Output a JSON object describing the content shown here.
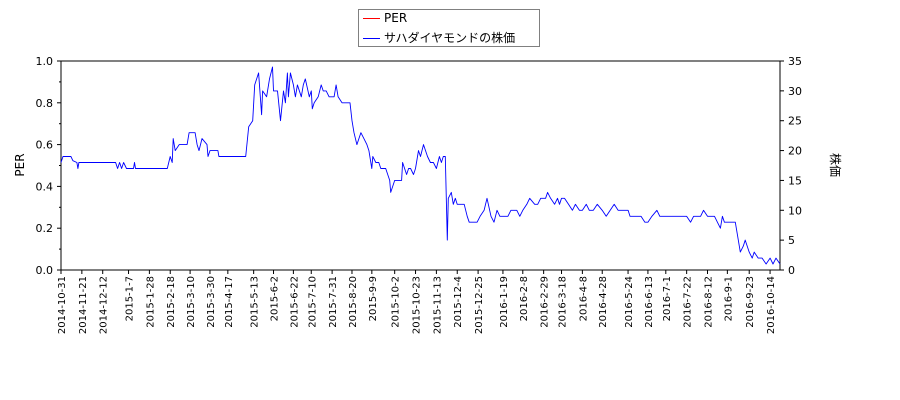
{
  "chart_data": {
    "type": "line",
    "legend": [
      {
        "name": "PER",
        "color": "#ff0000"
      },
      {
        "name": "サハダイヤモンドの株価",
        "color": "#0000ff"
      }
    ],
    "legend_position": "top-center",
    "ylabel_left": "PER",
    "ylabel_right": "株価",
    "ylim_left": [
      0,
      1.0
    ],
    "yticks_left": [
      "0.0",
      "0.2",
      "0.4",
      "0.6",
      "0.8",
      "1.0"
    ],
    "ylim_right": [
      0,
      35
    ],
    "yticks_right": [
      "0",
      "5",
      "10",
      "15",
      "20",
      "25",
      "30",
      "35"
    ],
    "xlim": [
      "2014-10-31",
      "2016-10-24"
    ],
    "xticks": [
      "2014-10-31",
      "2014-11-21",
      "2014-12-12",
      "2015-1-7",
      "2015-1-28",
      "2015-2-18",
      "2015-3-10",
      "2015-3-30",
      "2015-4-17",
      "2015-5-13",
      "2015-6-2",
      "2015-6-22",
      "2015-7-10",
      "2015-7-31",
      "2015-8-20",
      "2015-9-9",
      "2015-10-2",
      "2015-10-23",
      "2015-11-13",
      "2015-12-4",
      "2015-12-25",
      "2016-1-19",
      "2016-2-8",
      "2016-2-29",
      "2016-3-18",
      "2016-4-8",
      "2016-4-28",
      "2016-5-24",
      "2016-6-13",
      "2016-7-1",
      "2016-7-22",
      "2016-8-12",
      "2016-9-1",
      "2016-9-23",
      "2016-10-14"
    ],
    "grid": false,
    "series": [
      {
        "name": "PER",
        "axis": "left",
        "color": "#ff0000",
        "points": []
      },
      {
        "name": "サハダイヤモンドの株価",
        "axis": "right",
        "color": "#0000ff",
        "points": [
          [
            "2014-10-31",
            18.0
          ],
          [
            "2014-11-02",
            19.0
          ],
          [
            "2014-11-10",
            19.0
          ],
          [
            "2014-11-12",
            18.3
          ],
          [
            "2014-11-16",
            18.0
          ],
          [
            "2014-11-17",
            17.0
          ],
          [
            "2014-11-18",
            18.0
          ],
          [
            "2014-12-01",
            18.0
          ],
          [
            "2014-12-20",
            18.0
          ],
          [
            "2014-12-25",
            18.0
          ],
          [
            "2014-12-27",
            17.0
          ],
          [
            "2014-12-29",
            18.0
          ],
          [
            "2014-12-31",
            17.0
          ],
          [
            "2015-01-02",
            18.0
          ],
          [
            "2015-01-05",
            17.0
          ],
          [
            "2015-01-07",
            17.0
          ],
          [
            "2015-01-12",
            17.0
          ],
          [
            "2015-01-13",
            18.0
          ],
          [
            "2015-01-14",
            17.0
          ],
          [
            "2015-01-20",
            17.0
          ],
          [
            "2015-02-15",
            17.0
          ],
          [
            "2015-02-18",
            19.0
          ],
          [
            "2015-02-20",
            18.0
          ],
          [
            "2015-02-21",
            22.0
          ],
          [
            "2015-02-23",
            20.0
          ],
          [
            "2015-02-27",
            21.0
          ],
          [
            "2015-03-07",
            21.0
          ],
          [
            "2015-03-09",
            23.0
          ],
          [
            "2015-03-15",
            23.0
          ],
          [
            "2015-03-17",
            21.0
          ],
          [
            "2015-03-19",
            20.0
          ],
          [
            "2015-03-22",
            22.0
          ],
          [
            "2015-03-27",
            21.0
          ],
          [
            "2015-03-28",
            19.0
          ],
          [
            "2015-03-30",
            20.0
          ],
          [
            "2015-04-07",
            20.0
          ],
          [
            "2015-04-08",
            19.0
          ],
          [
            "2015-04-30",
            19.0
          ],
          [
            "2015-05-01",
            19.0
          ],
          [
            "2015-05-05",
            19.0
          ],
          [
            "2015-05-08",
            24.0
          ],
          [
            "2015-05-12",
            25.0
          ],
          [
            "2015-05-14",
            31.0
          ],
          [
            "2015-05-18",
            33.0
          ],
          [
            "2015-05-21",
            26.0
          ],
          [
            "2015-05-22",
            30.0
          ],
          [
            "2015-05-26",
            29.0
          ],
          [
            "2015-05-29",
            32.0
          ],
          [
            "2015-06-01",
            34.0
          ],
          [
            "2015-06-02",
            30.0
          ],
          [
            "2015-06-06",
            30.0
          ],
          [
            "2015-06-09",
            25.0
          ],
          [
            "2015-06-12",
            30.0
          ],
          [
            "2015-06-14",
            28.0
          ],
          [
            "2015-06-16",
            33.0
          ],
          [
            "2015-06-17",
            29.0
          ],
          [
            "2015-06-19",
            33.0
          ],
          [
            "2015-06-22",
            31.0
          ],
          [
            "2015-06-24",
            29.0
          ],
          [
            "2015-06-26",
            31.0
          ],
          [
            "2015-06-30",
            29.0
          ],
          [
            "2015-07-02",
            31.0
          ],
          [
            "2015-07-04",
            32.0
          ],
          [
            "2015-07-08",
            29.0
          ],
          [
            "2015-07-10",
            30.0
          ],
          [
            "2015-07-11",
            27.0
          ],
          [
            "2015-07-13",
            28.0
          ],
          [
            "2015-07-17",
            29.0
          ],
          [
            "2015-07-20",
            31.0
          ],
          [
            "2015-07-22",
            30.0
          ],
          [
            "2015-07-25",
            30.0
          ],
          [
            "2015-07-28",
            29.0
          ],
          [
            "2015-08-02",
            29.0
          ],
          [
            "2015-08-04",
            31.0
          ],
          [
            "2015-08-06",
            29.0
          ],
          [
            "2015-08-10",
            28.0
          ],
          [
            "2015-08-18",
            28.0
          ],
          [
            "2015-08-20",
            25.0
          ],
          [
            "2015-08-22",
            23.0
          ],
          [
            "2015-08-25",
            21.0
          ],
          [
            "2015-08-27",
            22.0
          ],
          [
            "2015-08-29",
            23.0
          ],
          [
            "2015-09-01",
            22.0
          ],
          [
            "2015-09-04",
            21.0
          ],
          [
            "2015-09-06",
            20.0
          ],
          [
            "2015-09-09",
            17.0
          ],
          [
            "2015-09-10",
            19.0
          ],
          [
            "2015-09-13",
            18.0
          ],
          [
            "2015-09-16",
            18.0
          ],
          [
            "2015-09-18",
            17.0
          ],
          [
            "2015-09-23",
            17.0
          ],
          [
            "2015-09-27",
            15.0
          ],
          [
            "2015-09-28",
            13.0
          ],
          [
            "2015-09-30",
            14.0
          ],
          [
            "2015-10-02",
            15.0
          ],
          [
            "2015-10-05",
            15.0
          ],
          [
            "2015-10-09",
            15.0
          ],
          [
            "2015-10-10",
            18.0
          ],
          [
            "2015-10-12",
            17.0
          ],
          [
            "2015-10-14",
            16.0
          ],
          [
            "2015-10-16",
            17.0
          ],
          [
            "2015-10-18",
            17.0
          ],
          [
            "2015-10-21",
            16.0
          ],
          [
            "2015-10-23",
            17.0
          ],
          [
            "2015-10-26",
            20.0
          ],
          [
            "2015-10-28",
            19.0
          ],
          [
            "2015-10-31",
            21.0
          ],
          [
            "2015-11-04",
            19.0
          ],
          [
            "2015-11-07",
            18.0
          ],
          [
            "2015-11-10",
            18.0
          ],
          [
            "2015-11-13",
            17.0
          ],
          [
            "2015-11-16",
            19.0
          ],
          [
            "2015-11-18",
            18.0
          ],
          [
            "2015-11-20",
            19.0
          ],
          [
            "2015-11-22",
            19.0
          ],
          [
            "2015-11-24",
            5.0
          ],
          [
            "2015-11-25",
            12.0
          ],
          [
            "2015-11-28",
            13.0
          ],
          [
            "2015-11-30",
            11.0
          ],
          [
            "2015-12-02",
            12.0
          ],
          [
            "2015-12-04",
            11.0
          ],
          [
            "2015-12-11",
            11.0
          ],
          [
            "2015-12-14",
            9.0
          ],
          [
            "2015-12-16",
            8.0
          ],
          [
            "2015-12-24",
            8.0
          ],
          [
            "2015-12-27",
            9.0
          ],
          [
            "2015-12-31",
            10.0
          ],
          [
            "2016-01-03",
            12.0
          ],
          [
            "2016-01-07",
            9.0
          ],
          [
            "2016-01-10",
            8.0
          ],
          [
            "2016-01-13",
            10.0
          ],
          [
            "2016-01-16",
            9.0
          ],
          [
            "2016-01-21",
            9.0
          ],
          [
            "2016-01-24",
            9.0
          ],
          [
            "2016-01-27",
            10.0
          ],
          [
            "2016-02-02",
            10.0
          ],
          [
            "2016-02-05",
            9.0
          ],
          [
            "2016-02-08",
            10.0
          ],
          [
            "2016-02-12",
            11.0
          ],
          [
            "2016-02-15",
            12.0
          ],
          [
            "2016-02-20",
            11.0
          ],
          [
            "2016-02-23",
            11.0
          ],
          [
            "2016-02-26",
            12.0
          ],
          [
            "2016-03-02",
            12.0
          ],
          [
            "2016-03-04",
            13.0
          ],
          [
            "2016-03-07",
            12.0
          ],
          [
            "2016-03-11",
            11.0
          ],
          [
            "2016-03-14",
            12.0
          ],
          [
            "2016-03-16",
            11.0
          ],
          [
            "2016-03-18",
            12.0
          ],
          [
            "2016-03-21",
            12.0
          ],
          [
            "2016-03-25",
            11.0
          ],
          [
            "2016-03-29",
            10.0
          ],
          [
            "2016-04-01",
            11.0
          ],
          [
            "2016-04-05",
            10.0
          ],
          [
            "2016-04-08",
            10.0
          ],
          [
            "2016-04-12",
            11.0
          ],
          [
            "2016-04-15",
            10.0
          ],
          [
            "2016-04-19",
            10.0
          ],
          [
            "2016-04-23",
            11.0
          ],
          [
            "2016-04-28",
            10.0
          ],
          [
            "2016-05-02",
            9.0
          ],
          [
            "2016-05-06",
            10.0
          ],
          [
            "2016-05-10",
            11.0
          ],
          [
            "2016-05-14",
            10.0
          ],
          [
            "2016-05-20",
            10.0
          ],
          [
            "2016-05-24",
            10.0
          ],
          [
            "2016-05-26",
            9.0
          ],
          [
            "2016-06-06",
            9.0
          ],
          [
            "2016-06-10",
            8.0
          ],
          [
            "2016-06-13",
            8.0
          ],
          [
            "2016-06-17",
            9.0
          ],
          [
            "2016-06-22",
            10.0
          ],
          [
            "2016-06-25",
            9.0
          ],
          [
            "2016-07-01",
            9.0
          ],
          [
            "2016-07-15",
            9.0
          ],
          [
            "2016-07-19",
            9.0
          ],
          [
            "2016-07-22",
            9.0
          ],
          [
            "2016-07-26",
            8.0
          ],
          [
            "2016-07-29",
            9.0
          ],
          [
            "2016-08-05",
            9.0
          ],
          [
            "2016-08-08",
            10.0
          ],
          [
            "2016-08-12",
            9.0
          ],
          [
            "2016-08-19",
            9.0
          ],
          [
            "2016-08-22",
            8.0
          ],
          [
            "2016-08-25",
            7.0
          ],
          [
            "2016-08-27",
            9.0
          ],
          [
            "2016-08-29",
            8.0
          ],
          [
            "2016-09-01",
            8.0
          ],
          [
            "2016-09-05",
            8.0
          ],
          [
            "2016-09-09",
            8.0
          ],
          [
            "2016-09-12",
            5.0
          ],
          [
            "2016-09-14",
            3.0
          ],
          [
            "2016-09-17",
            4.0
          ],
          [
            "2016-09-19",
            5.0
          ],
          [
            "2016-09-21",
            4.0
          ],
          [
            "2016-09-23",
            3.0
          ],
          [
            "2016-09-26",
            2.0
          ],
          [
            "2016-09-28",
            3.0
          ],
          [
            "2016-10-02",
            2.0
          ],
          [
            "2016-10-06",
            2.0
          ],
          [
            "2016-10-10",
            1.0
          ],
          [
            "2016-10-14",
            2.0
          ],
          [
            "2016-10-17",
            1.0
          ],
          [
            "2016-10-20",
            2.0
          ],
          [
            "2016-10-24",
            1.0
          ]
        ]
      }
    ]
  }
}
